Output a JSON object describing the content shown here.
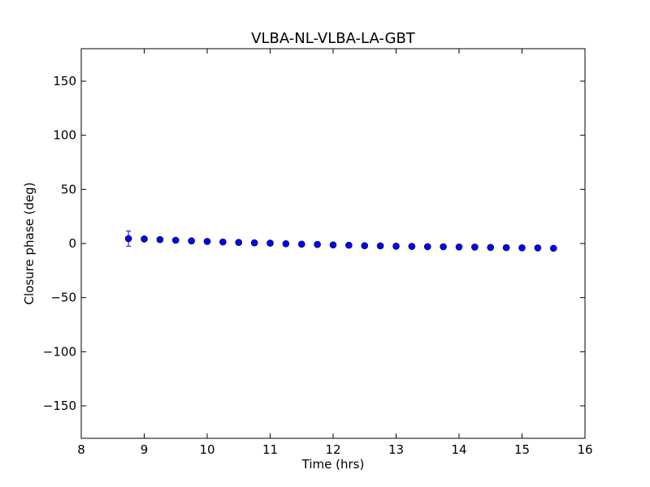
{
  "chart_data": {
    "type": "scatter",
    "title": "VLBA-NL-VLBA-LA-GBT",
    "xlabel": "Time (hrs)",
    "ylabel": "Closure phase (deg)",
    "xlim": [
      8,
      16
    ],
    "ylim": [
      -180,
      180
    ],
    "x_ticks": [
      8,
      9,
      10,
      11,
      12,
      13,
      14,
      15,
      16
    ],
    "x_tick_labels": [
      "8",
      "9",
      "10",
      "11",
      "12",
      "13",
      "14",
      "15",
      "16"
    ],
    "y_ticks": [
      150,
      100,
      50,
      0,
      -50,
      -100,
      -150
    ],
    "y_tick_labels": [
      "150",
      "100",
      "50",
      "0",
      "−50",
      "−100",
      "−150"
    ],
    "grid": false,
    "marker_color": "#0000ff",
    "marker_edge_color": "#000000",
    "series": [
      {
        "x": [
          8.75,
          9.0,
          9.25,
          9.5,
          9.75,
          10.0,
          10.25,
          10.5,
          10.75,
          11.0,
          11.25,
          11.5,
          11.75,
          12.0,
          12.25,
          12.5,
          12.75,
          13.0,
          13.25,
          13.5,
          13.75,
          14.0,
          14.25,
          14.5,
          14.75,
          15.0,
          15.25,
          15.5
        ],
        "y": [
          4.5,
          4.2,
          3.6,
          3.0,
          2.4,
          1.9,
          1.4,
          1.0,
          0.6,
          0.3,
          -0.2,
          -0.6,
          -0.9,
          -1.3,
          -1.6,
          -2.0,
          -2.2,
          -2.5,
          -2.7,
          -2.9,
          -3.0,
          -3.2,
          -3.3,
          -3.6,
          -3.8,
          -4.0,
          -4.1,
          -4.4
        ],
        "yerr": [
          7.0,
          1.0,
          1.0,
          1.0,
          1.0,
          1.0,
          1.0,
          1.0,
          1.0,
          1.0,
          1.0,
          1.0,
          1.0,
          1.0,
          1.0,
          1.0,
          1.0,
          1.0,
          1.0,
          1.0,
          1.0,
          1.0,
          1.0,
          1.0,
          1.0,
          1.0,
          1.0,
          1.0
        ]
      }
    ]
  }
}
